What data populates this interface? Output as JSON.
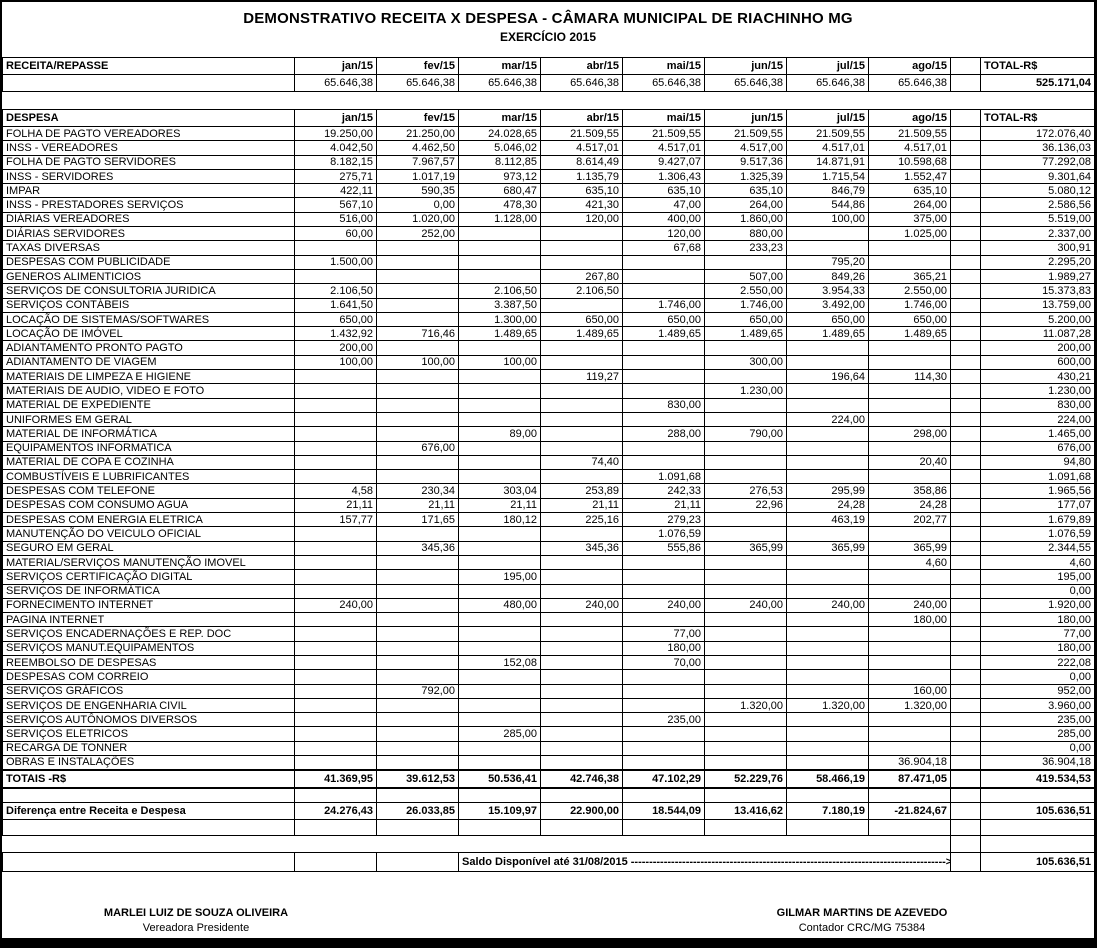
{
  "title": {
    "line1": "DEMONSTRATIVO  RECEITA X DESPESA - CÂMARA MUNICIPAL DE RIACHINHO MG",
    "line2": "EXERCÍCIO 2015"
  },
  "columns": {
    "months": [
      "jan/15",
      "fev/15",
      "mar/15",
      "abr/15",
      "mai/15",
      "jun/15",
      "jul/15",
      "ago/15"
    ],
    "total_label": "TOTAL-R$"
  },
  "receita": {
    "section_label": "RECEITA/REPASSE",
    "values": [
      "65.646,38",
      "65.646,38",
      "65.646,38",
      "65.646,38",
      "65.646,38",
      "65.646,38",
      "65.646,38",
      "65.646,38"
    ],
    "total": "525.171,04"
  },
  "despesa": {
    "section_label": "DESPESA",
    "rows": [
      {
        "label": "FOLHA DE PAGTO VEREADORES",
        "values": [
          "19.250,00",
          "21.250,00",
          "24.028,65",
          "21.509,55",
          "21.509,55",
          "21.509,55",
          "21.509,55",
          "21.509,55"
        ],
        "total": "172.076,40"
      },
      {
        "label": "INSS - VEREADORES",
        "values": [
          "4.042,50",
          "4.462,50",
          "5.046,02",
          "4.517,01",
          "4.517,01",
          "4.517,00",
          "4.517,01",
          "4.517,01"
        ],
        "total": "36.136,03"
      },
      {
        "label": "FOLHA DE PAGTO SERVIDORES",
        "values": [
          "8.182,15",
          "7.967,57",
          "8.112,85",
          "8.614,49",
          "9.427,07",
          "9.517,36",
          "14.871,91",
          "10.598,68"
        ],
        "total": "77.292,08"
      },
      {
        "label": "INSS - SERVIDORES",
        "values": [
          "275,71",
          "1.017,19",
          "973,12",
          "1.135,79",
          "1.306,43",
          "1.325,39",
          "1.715,54",
          "1.552,47"
        ],
        "total": "9.301,64"
      },
      {
        "label": "IMPAR",
        "values": [
          "422,11",
          "590,35",
          "680,47",
          "635,10",
          "635,10",
          "635,10",
          "846,79",
          "635,10"
        ],
        "total": "5.080,12"
      },
      {
        "label": "INSS - PRESTADORES SERVIÇOS",
        "values": [
          "567,10",
          "0,00",
          "478,30",
          "421,30",
          "47,00",
          "264,00",
          "544,86",
          "264,00"
        ],
        "total": "2.586,56"
      },
      {
        "label": "DIÁRIAS VEREADORES",
        "values": [
          "516,00",
          "1.020,00",
          "1.128,00",
          "120,00",
          "400,00",
          "1.860,00",
          "100,00",
          "375,00"
        ],
        "total": "5.519,00"
      },
      {
        "label": "DIÁRIAS SERVIDORES",
        "values": [
          "60,00",
          "252,00",
          "",
          "",
          "120,00",
          "880,00",
          "",
          "1.025,00"
        ],
        "total": "2.337,00"
      },
      {
        "label": "TAXAS DIVERSAS",
        "values": [
          "",
          "",
          "",
          "",
          "67,68",
          "233,23",
          "",
          ""
        ],
        "total": "300,91"
      },
      {
        "label": "DESPESAS COM PUBLICIDADE",
        "values": [
          "1.500,00",
          "",
          "",
          "",
          "",
          "",
          "795,20",
          ""
        ],
        "total": "2.295,20"
      },
      {
        "label": "GENEROS ALIMENTICIOS",
        "values": [
          "",
          "",
          "",
          "267,80",
          "",
          "507,00",
          "849,26",
          "365,21"
        ],
        "total": "1.989,27"
      },
      {
        "label": "SERVIÇOS DE CONSULTORIA JURIDICA",
        "values": [
          "2.106,50",
          "",
          "2.106,50",
          "2.106,50",
          "",
          "2.550,00",
          "3.954,33",
          "2.550,00"
        ],
        "total": "15.373,83"
      },
      {
        "label": "SERVIÇOS CONTÁBEIS",
        "values": [
          "1.641,50",
          "",
          "3.387,50",
          "",
          "1.746,00",
          "1.746,00",
          "3.492,00",
          "1.746,00"
        ],
        "total": "13.759,00"
      },
      {
        "label": "LOCAÇÃO DE SISTEMAS/SOFTWARES",
        "values": [
          "650,00",
          "",
          "1.300,00",
          "650,00",
          "650,00",
          "650,00",
          "650,00",
          "650,00"
        ],
        "total": "5.200,00"
      },
      {
        "label": "LOCAÇÃO DE IMÓVEL",
        "values": [
          "1.432,92",
          "716,46",
          "1.489,65",
          "1.489,65",
          "1.489,65",
          "1.489,65",
          "1.489,65",
          "1.489,65"
        ],
        "total": "11.087,28"
      },
      {
        "label": "ADIANTAMENTO PRONTO PAGTO",
        "values": [
          "200,00",
          "",
          "",
          "",
          "",
          "",
          "",
          ""
        ],
        "total": "200,00"
      },
      {
        "label": "ADIANTAMENTO DE VIAGEM",
        "values": [
          "100,00",
          "100,00",
          "100,00",
          "",
          "",
          "300,00",
          "",
          ""
        ],
        "total": "600,00"
      },
      {
        "label": "MATERIAIS DE LIMPEZA E HIGIENE",
        "values": [
          "",
          "",
          "",
          "119,27",
          "",
          "",
          "196,64",
          "114,30"
        ],
        "total": "430,21"
      },
      {
        "label": "MATERIAIS DE AUDIO, VIDEO E FOTO",
        "values": [
          "",
          "",
          "",
          "",
          "",
          "1.230,00",
          "",
          ""
        ],
        "total": "1.230,00"
      },
      {
        "label": "MATERIAL DE EXPEDIENTE",
        "values": [
          "",
          "",
          "",
          "",
          "830,00",
          "",
          "",
          ""
        ],
        "total": "830,00"
      },
      {
        "label": "UNIFORMES EM GERAL",
        "values": [
          "",
          "",
          "",
          "",
          "",
          "",
          "224,00",
          ""
        ],
        "total": "224,00"
      },
      {
        "label": "MATERIAL DE INFORMÁTICA",
        "values": [
          "",
          "",
          "89,00",
          "",
          "288,00",
          "790,00",
          "",
          "298,00"
        ],
        "total": "1.465,00"
      },
      {
        "label": "EQUIPAMENTOS INFORMATICA",
        "values": [
          "",
          "676,00",
          "",
          "",
          "",
          "",
          "",
          ""
        ],
        "total": "676,00"
      },
      {
        "label": "MATERIAL DE COPA E COZINHA",
        "values": [
          "",
          "",
          "",
          "74,40",
          "",
          "",
          "",
          "20,40"
        ],
        "total": "94,80"
      },
      {
        "label": "COMBUSTÍVEIS E LUBRIFICANTES",
        "values": [
          "",
          "",
          "",
          "",
          "1.091,68",
          "",
          "",
          ""
        ],
        "total": "1.091,68"
      },
      {
        "label": "DESPESAS COM TELEFONE",
        "values": [
          "4,58",
          "230,34",
          "303,04",
          "253,89",
          "242,33",
          "276,53",
          "295,99",
          "358,86"
        ],
        "total": "1.965,56"
      },
      {
        "label": "DESPESAS COM CONSUMO AGUA",
        "values": [
          "21,11",
          "21,11",
          "21,11",
          "21,11",
          "21,11",
          "22,96",
          "24,28",
          "24,28"
        ],
        "total": "177,07"
      },
      {
        "label": "DESPESAS COM ENERGIA ELETRICA",
        "values": [
          "157,77",
          "171,65",
          "180,12",
          "225,16",
          "279,23",
          "",
          "463,19",
          "202,77"
        ],
        "total": "1.679,89"
      },
      {
        "label": "MANUTENÇÃO DO VEICULO OFICIAL",
        "values": [
          "",
          "",
          "",
          "",
          "1.076,59",
          "",
          "",
          ""
        ],
        "total": "1.076,59"
      },
      {
        "label": "SEGURO EM GERAL",
        "values": [
          "",
          "345,36",
          "",
          "345,36",
          "555,86",
          "365,99",
          "365,99",
          "365,99"
        ],
        "total": "2.344,55"
      },
      {
        "label": "MATERIAL/SERVIÇOS MANUTENÇÃO IMOVEL",
        "values": [
          "",
          "",
          "",
          "",
          "",
          "",
          "",
          "4,60"
        ],
        "total": "4,60"
      },
      {
        "label": "SERVIÇOS CERTIFICAÇÃO DIGITAL",
        "values": [
          "",
          "",
          "195,00",
          "",
          "",
          "",
          "",
          ""
        ],
        "total": "195,00"
      },
      {
        "label": "SERVIÇOS DE INFORMÁTICA",
        "values": [
          "",
          "",
          "",
          "",
          "",
          "",
          "",
          ""
        ],
        "total": "0,00"
      },
      {
        "label": "FORNECIMENTO INTERNET",
        "values": [
          "240,00",
          "",
          "480,00",
          "240,00",
          "240,00",
          "240,00",
          "240,00",
          "240,00"
        ],
        "total": "1.920,00"
      },
      {
        "label": "PAGINA INTERNET",
        "values": [
          "",
          "",
          "",
          "",
          "",
          "",
          "",
          "180,00"
        ],
        "total": "180,00"
      },
      {
        "label": "SERVIÇOS ENCADERNAÇÕES E REP. DOC",
        "values": [
          "",
          "",
          "",
          "",
          "77,00",
          "",
          "",
          ""
        ],
        "total": "77,00"
      },
      {
        "label": "SERVIÇOS MANUT.EQUIPAMENTOS",
        "values": [
          "",
          "",
          "",
          "",
          "180,00",
          "",
          "",
          ""
        ],
        "total": "180,00"
      },
      {
        "label": "REEMBOLSO DE DESPESAS",
        "values": [
          "",
          "",
          "152,08",
          "",
          "70,00",
          "",
          "",
          ""
        ],
        "total": "222,08"
      },
      {
        "label": "DESPESAS COM CORREIO",
        "values": [
          "",
          "",
          "",
          "",
          "",
          "",
          "",
          ""
        ],
        "total": "0,00"
      },
      {
        "label": "SERVIÇOS GRÁFICOS",
        "values": [
          "",
          "792,00",
          "",
          "",
          "",
          "",
          "",
          "160,00"
        ],
        "total": "952,00"
      },
      {
        "label": "SERVIÇOS DE ENGENHARIA CIVIL",
        "values": [
          "",
          "",
          "",
          "",
          "",
          "1.320,00",
          "1.320,00",
          "1.320,00"
        ],
        "total": "3.960,00"
      },
      {
        "label": "SERVIÇOS AUTÔNOMOS DIVERSOS",
        "values": [
          "",
          "",
          "",
          "",
          "235,00",
          "",
          "",
          ""
        ],
        "total": "235,00"
      },
      {
        "label": "SERVIÇOS ELETRICOS",
        "values": [
          "",
          "",
          "285,00",
          "",
          "",
          "",
          "",
          ""
        ],
        "total": "285,00"
      },
      {
        "label": "RECARGA DE TONNER",
        "values": [
          "",
          "",
          "",
          "",
          "",
          "",
          "",
          ""
        ],
        "total": "0,00"
      },
      {
        "label": "OBRAS E INSTALAÇÕES",
        "values": [
          "",
          "",
          "",
          "",
          "",
          "",
          "",
          "36.904,18"
        ],
        "total": "36.904,18"
      }
    ]
  },
  "totais": {
    "label": "TOTAIS -R$",
    "values": [
      "41.369,95",
      "39.612,53",
      "50.536,41",
      "42.746,38",
      "47.102,29",
      "52.229,76",
      "58.466,19",
      "87.471,05"
    ],
    "total": "419.534,53"
  },
  "diferenca": {
    "label": "Diferença entre Receita e Despesa",
    "values": [
      "24.276,43",
      "26.033,85",
      "15.109,97",
      "22.900,00",
      "18.544,09",
      "13.416,62",
      "7.180,19",
      "-21.824,67"
    ],
    "total": "105.636,51"
  },
  "saldo": {
    "label": "Saldo Disponível até 31/08/2015",
    "leader": "-------------------------------------------------------------------------------------->",
    "total": "105.636,51"
  },
  "signatures": {
    "left": {
      "name": "MARLEI LUIZ DE SOUZA OLIVEIRA",
      "role": "Vereadora Presidente"
    },
    "right": {
      "name": "GILMAR MARTINS DE AZEVEDO",
      "role": "Contador CRC/MG 75384"
    }
  }
}
